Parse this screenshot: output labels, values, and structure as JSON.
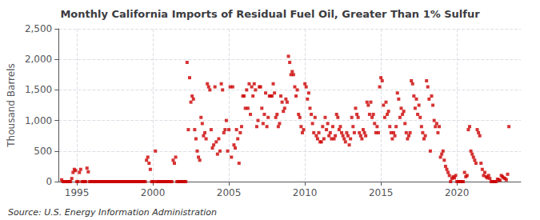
{
  "chart_data": {
    "type": "scatter",
    "title": "Monthly California Imports of Residual Fuel Oil, Greater Than 1% Sulfur",
    "ylabel": "Thousand Barrels",
    "annotations": [
      "Source: U.S. Energy Information Administration"
    ],
    "color": "#cc0000",
    "marker": "square",
    "grid": true,
    "xlim": [
      1993.8,
      2024.2
    ],
    "xticks": [
      1995,
      2000,
      2005,
      2010,
      2015,
      2020
    ],
    "ylim": [
      0,
      2500
    ],
    "yticks": [
      0,
      500,
      {
        "value": 1000,
        "label": "1,000"
      },
      {
        "value": 1500,
        "label": "1,500"
      },
      {
        "value": 2000,
        "label": "2,000"
      },
      {
        "value": 2500,
        "label": "2,500"
      }
    ],
    "x": [
      1994.0,
      1994.083,
      1994.167,
      1994.25,
      1994.333,
      1994.417,
      1994.5,
      1994.583,
      1994.667,
      1994.75,
      1994.833,
      1994.917,
      1995.0,
      1995.083,
      1995.167,
      1995.25,
      1995.333,
      1995.417,
      1995.5,
      1995.583,
      1995.667,
      1995.75,
      1995.833,
      1995.917,
      1996.0,
      1996.083,
      1996.167,
      1996.25,
      1996.333,
      1996.417,
      1996.5,
      1996.583,
      1996.667,
      1996.75,
      1996.833,
      1996.917,
      1997.0,
      1997.083,
      1997.167,
      1997.25,
      1997.333,
      1997.417,
      1997.5,
      1997.583,
      1997.667,
      1997.75,
      1997.833,
      1997.917,
      1998.0,
      1998.083,
      1998.167,
      1998.25,
      1998.333,
      1998.417,
      1998.5,
      1998.583,
      1998.667,
      1998.75,
      1998.833,
      1998.917,
      1999.0,
      1999.083,
      1999.167,
      1999.25,
      1999.333,
      1999.417,
      1999.5,
      1999.583,
      1999.667,
      1999.75,
      1999.833,
      1999.917,
      2000.0,
      2000.083,
      2000.167,
      2000.25,
      2000.333,
      2000.417,
      2000.5,
      2000.583,
      2000.667,
      2000.75,
      2000.833,
      2000.917,
      2001.0,
      2001.083,
      2001.167,
      2001.25,
      2001.333,
      2001.417,
      2001.5,
      2001.583,
      2001.667,
      2001.75,
      2001.833,
      2001.917,
      2002.0,
      2002.083,
      2002.167,
      2002.25,
      2002.333,
      2002.417,
      2002.5,
      2002.583,
      2002.667,
      2002.75,
      2002.833,
      2002.917,
      2003.0,
      2003.083,
      2003.167,
      2003.25,
      2003.333,
      2003.417,
      2003.5,
      2003.583,
      2003.667,
      2003.75,
      2003.833,
      2003.917,
      2004.0,
      2004.083,
      2004.167,
      2004.25,
      2004.333,
      2004.417,
      2004.5,
      2004.583,
      2004.667,
      2004.75,
      2004.833,
      2004.917,
      2005.0,
      2005.083,
      2005.167,
      2005.25,
      2005.333,
      2005.417,
      2005.5,
      2005.583,
      2005.667,
      2005.75,
      2005.833,
      2005.917,
      2006.0,
      2006.083,
      2006.167,
      2006.25,
      2006.333,
      2006.417,
      2006.5,
      2006.583,
      2006.667,
      2006.75,
      2006.833,
      2006.917,
      2007.0,
      2007.083,
      2007.167,
      2007.25,
      2007.333,
      2007.417,
      2007.5,
      2007.583,
      2007.667,
      2007.75,
      2007.833,
      2007.917,
      2008.0,
      2008.083,
      2008.167,
      2008.25,
      2008.333,
      2008.417,
      2008.5,
      2008.583,
      2008.667,
      2008.75,
      2008.833,
      2008.917,
      2009.0,
      2009.083,
      2009.167,
      2009.25,
      2009.333,
      2009.417,
      2009.5,
      2009.583,
      2009.667,
      2009.75,
      2009.833,
      2009.917,
      2010.0,
      2010.083,
      2010.167,
      2010.25,
      2010.333,
      2010.417,
      2010.5,
      2010.583,
      2010.667,
      2010.75,
      2010.833,
      2010.917,
      2011.0,
      2011.083,
      2011.167,
      2011.25,
      2011.333,
      2011.417,
      2011.5,
      2011.583,
      2011.667,
      2011.75,
      2011.833,
      2011.917,
      2012.0,
      2012.083,
      2012.167,
      2012.25,
      2012.333,
      2012.417,
      2012.5,
      2012.583,
      2012.667,
      2012.75,
      2012.833,
      2012.917,
      2013.0,
      2013.083,
      2013.167,
      2013.25,
      2013.333,
      2013.417,
      2013.5,
      2013.583,
      2013.667,
      2013.75,
      2013.833,
      2013.917,
      2014.0,
      2014.083,
      2014.167,
      2014.25,
      2014.333,
      2014.417,
      2014.5,
      2014.583,
      2014.667,
      2014.75,
      2014.833,
      2014.917,
      2015.0,
      2015.083,
      2015.167,
      2015.25,
      2015.333,
      2015.417,
      2015.5,
      2015.583,
      2015.667,
      2015.75,
      2015.833,
      2015.917,
      2016.0,
      2016.083,
      2016.167,
      2016.25,
      2016.333,
      2016.417,
      2016.5,
      2016.583,
      2016.667,
      2016.75,
      2016.833,
      2016.917,
      2017.0,
      2017.083,
      2017.167,
      2017.25,
      2017.333,
      2017.417,
      2017.5,
      2017.583,
      2017.667,
      2017.75,
      2017.833,
      2017.917,
      2018.0,
      2018.083,
      2018.167,
      2018.25,
      2018.333,
      2018.417,
      2018.5,
      2018.583,
      2018.667,
      2018.75,
      2018.833,
      2018.917,
      2019.0,
      2019.083,
      2019.167,
      2019.25,
      2019.333,
      2019.417,
      2019.5,
      2019.583,
      2019.667,
      2019.75,
      2019.833,
      2019.917,
      2020.0,
      2020.083,
      2020.167,
      2020.25,
      2020.333,
      2020.417,
      2020.5,
      2020.583,
      2020.667,
      2020.75,
      2020.833,
      2020.917,
      2021.0,
      2021.083,
      2021.167,
      2021.25,
      2021.333,
      2021.417,
      2021.5,
      2021.583,
      2021.667,
      2021.75,
      2021.833,
      2021.917,
      2022.0,
      2022.083,
      2022.167,
      2022.25,
      2022.333,
      2022.417,
      2022.5,
      2022.583,
      2022.667,
      2022.75,
      2022.833,
      2022.917,
      2023.0,
      2023.083,
      2023.167,
      2023.25,
      2023.333,
      2023.417
    ],
    "values": [
      30,
      0,
      0,
      0,
      0,
      0,
      0,
      0,
      50,
      150,
      200,
      180,
      0,
      0,
      150,
      200,
      0,
      0,
      0,
      0,
      220,
      160,
      0,
      0,
      0,
      0,
      0,
      0,
      0,
      0,
      0,
      0,
      0,
      0,
      0,
      0,
      0,
      0,
      0,
      0,
      0,
      0,
      0,
      0,
      0,
      0,
      0,
      0,
      0,
      0,
      0,
      0,
      0,
      0,
      0,
      0,
      0,
      0,
      0,
      0,
      0,
      0,
      0,
      0,
      0,
      0,
      0,
      350,
      400,
      300,
      200,
      0,
      0,
      0,
      500,
      0,
      0,
      0,
      0,
      0,
      0,
      0,
      0,
      0,
      0,
      0,
      0,
      0,
      350,
      300,
      400,
      0,
      0,
      0,
      0,
      0,
      0,
      0,
      0,
      1950,
      850,
      1700,
      1300,
      1400,
      1350,
      850,
      700,
      500,
      400,
      350,
      1050,
      950,
      750,
      800,
      700,
      1600,
      1550,
      1500,
      850,
      550,
      600,
      1550,
      650,
      450,
      700,
      500,
      1600,
      1500,
      800,
      850,
      1000,
      500,
      850,
      1550,
      400,
      1550,
      600,
      550,
      850,
      700,
      300,
      800,
      900,
      1400,
      1400,
      1200,
      1500,
      1200,
      1600,
      1100,
      1550,
      1400,
      1600,
      1500,
      900,
      1000,
      1550,
      1550,
      1200,
      950,
      1100,
      1450,
      900,
      1050,
      1400,
      1400,
      1400,
      1600,
      1450,
      1050,
      1100,
      900,
      950,
      1400,
      1300,
      1150,
      1200,
      1350,
      1300,
      2050,
      1950,
      1750,
      1800,
      1750,
      1550,
      1400,
      1500,
      1100,
      1050,
      900,
      800,
      850,
      1600,
      1550,
      1350,
      1450,
      1200,
      1100,
      950,
      800,
      1050,
      750,
      700,
      800,
      650,
      650,
      900,
      700,
      1050,
      850,
      950,
      750,
      800,
      700,
      900,
      700,
      750,
      1100,
      1050,
      850,
      900,
      800,
      750,
      700,
      650,
      800,
      750,
      600,
      700,
      1050,
      900,
      800,
      1200,
      1100,
      1050,
      800,
      750,
      700,
      850,
      800,
      750,
      1300,
      1250,
      1100,
      1300,
      1050,
      1100,
      950,
      800,
      900,
      800,
      1550,
      1700,
      1650,
      1250,
      1050,
      1300,
      1100,
      1150,
      900,
      800,
      700,
      800,
      750,
      900,
      1450,
      1350,
      1050,
      1200,
      1100,
      1150,
      950,
      800,
      700,
      750,
      800,
      1650,
      1600,
      1400,
      1200,
      1350,
      1100,
      1250,
      1050,
      900,
      800,
      700,
      750,
      1650,
      1550,
      1350,
      500,
      1400,
      1250,
      1000,
      900,
      950,
      800,
      900,
      400,
      450,
      500,
      350,
      250,
      200,
      150,
      100,
      0,
      50,
      80,
      60,
      100,
      0,
      0,
      0,
      0,
      0,
      0,
      150,
      80,
      100,
      850,
      900,
      500,
      450,
      400,
      350,
      300,
      850,
      800,
      750,
      300,
      200,
      100,
      150,
      80,
      60,
      100,
      50,
      0,
      0,
      0,
      0,
      0,
      40,
      30,
      20,
      100,
      80,
      60,
      50,
      30,
      120,
      900
    ]
  }
}
